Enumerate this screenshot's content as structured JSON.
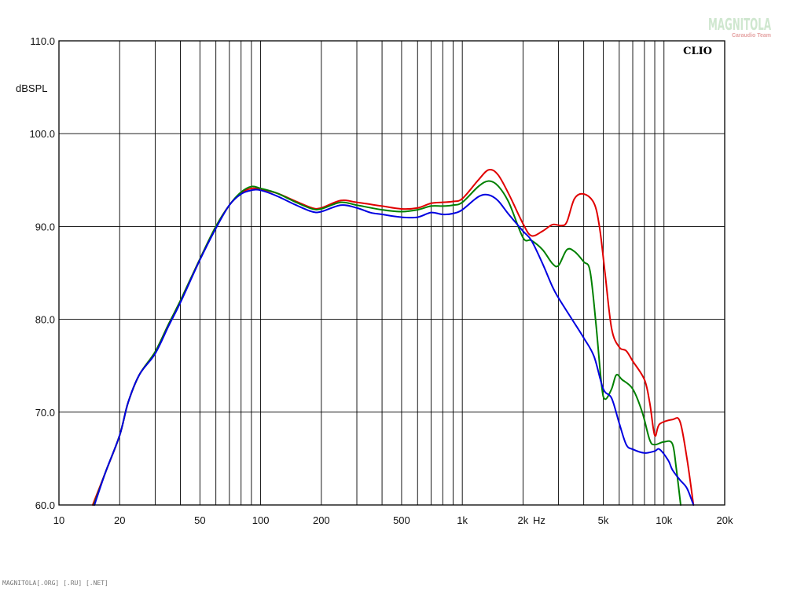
{
  "chart_data": {
    "type": "line",
    "brand_label": "CLIO",
    "ylabel": "dBSPL",
    "xunit_label": "Hz",
    "x_scale": "log",
    "xlim": [
      10,
      20000
    ],
    "ylim": [
      60,
      110
    ],
    "grid": true,
    "y_ticks": [
      60,
      70,
      80,
      90,
      100,
      110
    ],
    "y_tick_labels": [
      "60.0",
      "70.0",
      "80.0",
      "90.0",
      "100.0",
      "110.0"
    ],
    "x_ticks": [
      10,
      20,
      50,
      100,
      200,
      500,
      1000,
      2000,
      5000,
      10000,
      20000
    ],
    "x_tick_labels": [
      "10",
      "20",
      "50",
      "100",
      "200",
      "500",
      "1k",
      "2k",
      "5k",
      "10k",
      "20k"
    ],
    "series": [
      {
        "color": "#e00000",
        "points": [
          [
            14.7,
            60
          ],
          [
            17,
            63.5
          ],
          [
            20,
            67.5
          ],
          [
            22,
            71
          ],
          [
            25,
            74
          ],
          [
            30,
            76.5
          ],
          [
            35,
            79.5
          ],
          [
            40,
            82
          ],
          [
            50,
            86.5
          ],
          [
            60,
            90
          ],
          [
            70,
            92.3
          ],
          [
            80,
            93.6
          ],
          [
            90,
            94.1
          ],
          [
            100,
            94
          ],
          [
            120,
            93.6
          ],
          [
            150,
            92.7
          ],
          [
            180,
            92
          ],
          [
            200,
            92
          ],
          [
            250,
            92.8
          ],
          [
            300,
            92.6
          ],
          [
            400,
            92.2
          ],
          [
            500,
            91.9
          ],
          [
            600,
            92
          ],
          [
            700,
            92.5
          ],
          [
            800,
            92.6
          ],
          [
            900,
            92.7
          ],
          [
            1000,
            93
          ],
          [
            1200,
            95
          ],
          [
            1350,
            96.1
          ],
          [
            1500,
            95.6
          ],
          [
            1700,
            93.5
          ],
          [
            2000,
            90.3
          ],
          [
            2200,
            89
          ],
          [
            2500,
            89.5
          ],
          [
            2800,
            90.2
          ],
          [
            3100,
            90.1
          ],
          [
            3300,
            90.5
          ],
          [
            3600,
            93
          ],
          [
            4000,
            93.5
          ],
          [
            4500,
            92.5
          ],
          [
            4800,
            89.8
          ],
          [
            5100,
            85
          ],
          [
            5500,
            79
          ],
          [
            6000,
            77
          ],
          [
            6500,
            76.6
          ],
          [
            7000,
            75.5
          ],
          [
            8000,
            73.5
          ],
          [
            8500,
            71
          ],
          [
            9000,
            67.5
          ],
          [
            9500,
            68.7
          ],
          [
            11000,
            69.2
          ],
          [
            12000,
            69
          ],
          [
            13000,
            65
          ],
          [
            14000,
            60
          ]
        ]
      },
      {
        "color": "#008000",
        "points": [
          [
            14.9,
            60
          ],
          [
            17,
            63.5
          ],
          [
            20,
            67.5
          ],
          [
            22,
            71
          ],
          [
            25,
            74
          ],
          [
            30,
            76.5
          ],
          [
            35,
            79.5
          ],
          [
            40,
            82
          ],
          [
            50,
            86.5
          ],
          [
            60,
            90
          ],
          [
            70,
            92.3
          ],
          [
            80,
            93.7
          ],
          [
            90,
            94.3
          ],
          [
            100,
            94.1
          ],
          [
            120,
            93.6
          ],
          [
            150,
            92.6
          ],
          [
            180,
            91.9
          ],
          [
            200,
            91.9
          ],
          [
            250,
            92.6
          ],
          [
            300,
            92.3
          ],
          [
            400,
            91.8
          ],
          [
            500,
            91.6
          ],
          [
            600,
            91.8
          ],
          [
            700,
            92.2
          ],
          [
            800,
            92.2
          ],
          [
            900,
            92.3
          ],
          [
            1000,
            92.6
          ],
          [
            1200,
            94.3
          ],
          [
            1350,
            94.9
          ],
          [
            1500,
            94.4
          ],
          [
            1700,
            92.6
          ],
          [
            2000,
            88.8
          ],
          [
            2200,
            88.5
          ],
          [
            2500,
            87.5
          ],
          [
            2800,
            86
          ],
          [
            3000,
            85.8
          ],
          [
            3300,
            87.5
          ],
          [
            3600,
            87.3
          ],
          [
            4000,
            86.2
          ],
          [
            4300,
            85.2
          ],
          [
            4600,
            79.5
          ],
          [
            4900,
            73
          ],
          [
            5100,
            71.4
          ],
          [
            5500,
            72.5
          ],
          [
            5800,
            74
          ],
          [
            6200,
            73.5
          ],
          [
            7000,
            72.5
          ],
          [
            7800,
            70
          ],
          [
            8500,
            67
          ],
          [
            9000,
            66.5
          ],
          [
            10000,
            66.8
          ],
          [
            11000,
            66.6
          ],
          [
            11500,
            64
          ],
          [
            12100,
            60
          ]
        ]
      },
      {
        "color": "#0000e0",
        "points": [
          [
            15,
            60
          ],
          [
            17,
            63.5
          ],
          [
            20,
            67.5
          ],
          [
            22,
            71
          ],
          [
            25,
            74
          ],
          [
            30,
            76.3
          ],
          [
            35,
            79.3
          ],
          [
            40,
            81.8
          ],
          [
            50,
            86.4
          ],
          [
            60,
            89.8
          ],
          [
            70,
            92.3
          ],
          [
            80,
            93.5
          ],
          [
            90,
            93.9
          ],
          [
            100,
            93.9
          ],
          [
            120,
            93.3
          ],
          [
            150,
            92.3
          ],
          [
            180,
            91.6
          ],
          [
            200,
            91.6
          ],
          [
            250,
            92.3
          ],
          [
            300,
            92
          ],
          [
            350,
            91.5
          ],
          [
            400,
            91.3
          ],
          [
            500,
            91
          ],
          [
            600,
            91
          ],
          [
            700,
            91.5
          ],
          [
            800,
            91.3
          ],
          [
            900,
            91.4
          ],
          [
            1000,
            91.8
          ],
          [
            1200,
            93.2
          ],
          [
            1350,
            93.4
          ],
          [
            1500,
            92.8
          ],
          [
            1700,
            91.3
          ],
          [
            2000,
            89.5
          ],
          [
            2200,
            88.5
          ],
          [
            2500,
            86
          ],
          [
            2800,
            83.5
          ],
          [
            3000,
            82.3
          ],
          [
            3500,
            80
          ],
          [
            4000,
            78
          ],
          [
            4500,
            76
          ],
          [
            5000,
            72.5
          ],
          [
            5500,
            71.5
          ],
          [
            6000,
            68.8
          ],
          [
            6500,
            66.5
          ],
          [
            7000,
            66
          ],
          [
            8000,
            65.6
          ],
          [
            9000,
            65.8
          ],
          [
            9500,
            66
          ],
          [
            10500,
            64.8
          ],
          [
            11000,
            63.8
          ],
          [
            12000,
            62.7
          ],
          [
            13000,
            61.8
          ],
          [
            14000,
            60
          ]
        ]
      }
    ]
  },
  "watermark": {
    "main": "MAGNITOLA",
    "sub": "Caraudio Team"
  },
  "footer_text": "MAGNITOLA[.ORG] [.RU] [.NET]"
}
